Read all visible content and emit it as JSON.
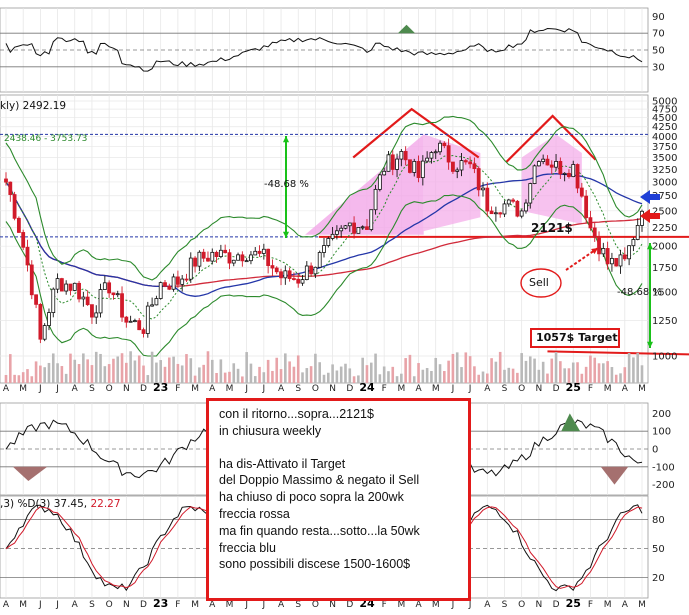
{
  "chart_data": {
    "type": "candlestick",
    "header": {
      "label_prefix": "kly)",
      "last_price": "2492.19",
      "band_range": "2438.46 - 3753.73",
      "stoch_header": ",3) %D(3)",
      "stoch_d": "37.45",
      "stoch_k": "22.27"
    },
    "price_axis": {
      "ticks": [
        "5000",
        "4750",
        "4500",
        "4250",
        "4000",
        "3750",
        "3500",
        "3250",
        "3000",
        "2750",
        "2500",
        "2250",
        "2000",
        "1750",
        "1500",
        "1250",
        "1000"
      ],
      "ylim": [
        950,
        5000
      ]
    },
    "rsi_axis": {
      "ticks": [
        "90",
        "70",
        "50",
        "30"
      ]
    },
    "cci_axis": {
      "ticks": [
        "200",
        "100",
        "0",
        "-100",
        "-200"
      ]
    },
    "stoch_axis": {
      "ticks": [
        "80",
        "50",
        "20"
      ]
    },
    "months": [
      "A",
      "M",
      "J",
      "J",
      "A",
      "S",
      "O",
      "N",
      "D",
      "23",
      "F",
      "M",
      "A",
      "M",
      "J",
      "J",
      "A",
      "S",
      "O",
      "N",
      "D",
      "24",
      "F",
      "M",
      "A",
      "M",
      "J",
      "J",
      "A",
      "S",
      "O",
      "N",
      "D",
      "25",
      "F",
      "M",
      "A",
      "M"
    ],
    "annotations": {
      "pct_top": "-48.68 %",
      "pct_right": "-48.68 %",
      "level_2121": "2121$",
      "sell": "Sell",
      "target": "1057$ Target"
    },
    "price_series_approx": [
      {
        "t": "2022-04",
        "close": 3000
      },
      {
        "t": "2022-05",
        "close": 2000
      },
      {
        "t": "2022-06",
        "close": 1100
      },
      {
        "t": "2022-07",
        "close": 1600
      },
      {
        "t": "2022-08",
        "close": 1550
      },
      {
        "t": "2022-09",
        "close": 1330
      },
      {
        "t": "2022-10",
        "close": 1560
      },
      {
        "t": "2022-11",
        "close": 1250
      },
      {
        "t": "2022-12",
        "close": 1200
      },
      {
        "t": "2023-01",
        "close": 1580
      },
      {
        "t": "2023-02",
        "close": 1600
      },
      {
        "t": "2023-03",
        "close": 1820
      },
      {
        "t": "2023-04",
        "close": 1900
      },
      {
        "t": "2023-05",
        "close": 1880
      },
      {
        "t": "2023-06",
        "close": 1930
      },
      {
        "t": "2023-07",
        "close": 1860
      },
      {
        "t": "2023-08",
        "close": 1650
      },
      {
        "t": "2023-09",
        "close": 1630
      },
      {
        "t": "2023-10",
        "close": 1800
      },
      {
        "t": "2023-11",
        "close": 2050
      },
      {
        "t": "2023-12",
        "close": 2300
      },
      {
        "t": "2024-01",
        "close": 2300
      },
      {
        "t": "2024-02",
        "close": 3300
      },
      {
        "t": "2024-03",
        "close": 3600
      },
      {
        "t": "2024-04",
        "close": 3100
      },
      {
        "t": "2024-05",
        "close": 3800
      },
      {
        "t": "2024-06",
        "close": 3400
      },
      {
        "t": "2024-07",
        "close": 3300
      },
      {
        "t": "2024-08",
        "close": 2600
      },
      {
        "t": "2024-09",
        "close": 2600
      },
      {
        "t": "2024-10",
        "close": 2500
      },
      {
        "t": "2024-11",
        "close": 3600
      },
      {
        "t": "2024-12",
        "close": 3300
      },
      {
        "t": "2025-01",
        "close": 3300
      },
      {
        "t": "2025-02",
        "close": 2250
      },
      {
        "t": "2025-03",
        "close": 1800
      },
      {
        "t": "2025-04",
        "close": 1800
      },
      {
        "t": "2025-05",
        "close": 2492
      }
    ],
    "colors": {
      "up": "#111111",
      "down": "#d11a2a",
      "ma50": "#2436a8",
      "ma200": "#d12a3a",
      "bollinger": "#2c8a2c",
      "triangle": "#f3a8e8",
      "note_border": "#e21a1a"
    }
  },
  "note": {
    "lines": [
      "con il ritorno...sopra...2121$",
      "in chiusura weekly",
      "",
      "ha dis-Attivato il Target",
      "del Doppio Massimo & negato il Sell",
      "ha chiuso di poco sopra la 200wk",
      "freccia rossa",
      "ma fin quando resta...sotto...la 50wk",
      "freccia blu",
      "sono possibili discese 1500-1600$"
    ]
  }
}
